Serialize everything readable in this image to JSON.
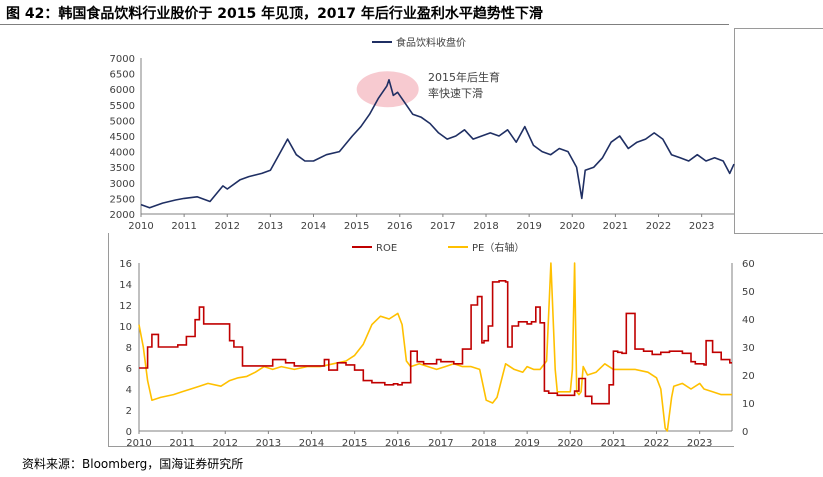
{
  "title": "图 42：韩国食品饮料行业股价于 2015 年见顶，2017 年后行业盈利水平趋势性下滑",
  "source": "资料来源：Bloomberg，国海证券研究所",
  "colors": {
    "index": "#1f2f63",
    "roe": "#c00000",
    "pe": "#ffc000",
    "highlight": "#f4b8c0"
  },
  "chart_data": [
    {
      "type": "line",
      "series": [
        {
          "name": "食品饮料收盘价",
          "x": [
            2010.0,
            2010.2,
            2010.5,
            2010.8,
            2011.0,
            2011.3,
            2011.6,
            2011.9,
            2012.0,
            2012.3,
            2012.5,
            2012.8,
            2013.0,
            2013.2,
            2013.4,
            2013.6,
            2013.8,
            2014.0,
            2014.3,
            2014.6,
            2014.9,
            2015.1,
            2015.3,
            2015.5,
            2015.6,
            2015.7,
            2015.75,
            2015.85,
            2015.95,
            2016.1,
            2016.3,
            2016.5,
            2016.7,
            2016.9,
            2017.1,
            2017.3,
            2017.5,
            2017.7,
            2017.9,
            2018.1,
            2018.3,
            2018.5,
            2018.7,
            2018.9,
            2019.1,
            2019.3,
            2019.5,
            2019.7,
            2019.9,
            2020.1,
            2020.22,
            2020.3,
            2020.5,
            2020.7,
            2020.9,
            2021.1,
            2021.3,
            2021.5,
            2021.7,
            2021.9,
            2022.1,
            2022.3,
            2022.5,
            2022.7,
            2022.9,
            2023.1,
            2023.3,
            2023.5,
            2023.65,
            2023.75
          ],
          "values": [
            2300,
            2200,
            2350,
            2450,
            2500,
            2550,
            2400,
            2900,
            2800,
            3100,
            3200,
            3300,
            3400,
            3900,
            4400,
            3900,
            3700,
            3700,
            3900,
            4000,
            4500,
            4800,
            5200,
            5700,
            5900,
            6100,
            6300,
            5800,
            5900,
            5600,
            5200,
            5100,
            4900,
            4600,
            4400,
            4500,
            4700,
            4400,
            4500,
            4600,
            4500,
            4700,
            4300,
            4800,
            4200,
            4000,
            3900,
            4100,
            4000,
            3500,
            2500,
            3400,
            3500,
            3800,
            4300,
            4500,
            4100,
            4300,
            4400,
            4600,
            4400,
            3900,
            3800,
            3700,
            3900,
            3700,
            3800,
            3700,
            3300,
            3600
          ]
        }
      ],
      "xlim": [
        2010,
        2023.75
      ],
      "ylim": [
        2000,
        7000
      ],
      "xticks": [
        "2010",
        "2011",
        "2012",
        "2013",
        "2014",
        "2015",
        "2016",
        "2017",
        "2018",
        "2019",
        "2020",
        "2021",
        "2022",
        "2023"
      ],
      "yticks": [
        "2000",
        "2500",
        "3000",
        "3500",
        "4000",
        "4500",
        "5000",
        "5500",
        "6000",
        "6500",
        "7000"
      ],
      "annotation": [
        "2015年后生育",
        "率快速下滑"
      ],
      "legend": "top-center"
    },
    {
      "type": "line",
      "series": [
        {
          "name": "ROE",
          "axis": "left",
          "x": [
            2010.0,
            2010.2,
            2010.3,
            2010.45,
            2010.7,
            2010.9,
            2011.1,
            2011.3,
            2011.4,
            2011.5,
            2011.8,
            2012.1,
            2012.2,
            2012.4,
            2012.6,
            2012.9,
            2013.1,
            2013.4,
            2013.6,
            2013.8,
            2014.1,
            2014.3,
            2014.4,
            2014.6,
            2014.8,
            2015.0,
            2015.2,
            2015.4,
            2015.7,
            2015.9,
            2016.0,
            2016.1,
            2016.3,
            2016.45,
            2016.6,
            2016.9,
            2017.0,
            2017.3,
            2017.5,
            2017.7,
            2017.85,
            2017.95,
            2018.0,
            2018.1,
            2018.2,
            2018.35,
            2018.5,
            2018.55,
            2018.65,
            2018.8,
            2019.0,
            2019.1,
            2019.2,
            2019.3,
            2019.4,
            2019.5,
            2019.7,
            2019.9,
            2020.1,
            2020.2,
            2020.35,
            2020.5,
            2020.7,
            2020.9,
            2021.0,
            2021.1,
            2021.2,
            2021.3,
            2021.5,
            2021.7,
            2021.9,
            2022.1,
            2022.3,
            2022.6,
            2022.8,
            2022.9,
            2023.1,
            2023.15,
            2023.3,
            2023.5,
            2023.7
          ],
          "values": [
            6,
            8,
            9.2,
            8,
            8,
            8.2,
            9,
            10.6,
            11.8,
            10.2,
            10.2,
            8.6,
            8,
            6.2,
            6.2,
            6.2,
            6.8,
            6.5,
            6.2,
            6.2,
            6.2,
            6.8,
            5.8,
            6.5,
            6.3,
            5.8,
            4.8,
            4.6,
            4.4,
            4.5,
            4.4,
            4.6,
            7.6,
            6.6,
            6.4,
            6.8,
            6.6,
            6.4,
            7.8,
            12,
            12.8,
            8.4,
            8.6,
            10,
            14.2,
            14.3,
            14.2,
            8,
            10,
            10.4,
            10.2,
            10.4,
            11.8,
            10.3,
            3.8,
            3.6,
            3.4,
            3.4,
            3.8,
            5,
            3.3,
            2.6,
            2.6,
            4.4,
            7.6,
            7.5,
            7.4,
            11.2,
            7.8,
            7.6,
            7.3,
            7.5,
            7.6,
            7.4,
            6.6,
            6.4,
            6.3,
            8.6,
            7.5,
            6.8,
            6.5
          ]
        },
        {
          "name": "PE（右轴）",
          "axis": "right",
          "x": [
            2010.0,
            2010.1,
            2010.2,
            2010.3,
            2010.5,
            2010.8,
            2011.0,
            2011.2,
            2011.4,
            2011.6,
            2011.9,
            2012.1,
            2012.3,
            2012.5,
            2012.7,
            2012.9,
            2013.1,
            2013.3,
            2013.6,
            2013.9,
            2014.2,
            2014.5,
            2014.8,
            2015.0,
            2015.2,
            2015.4,
            2015.6,
            2015.8,
            2016.0,
            2016.1,
            2016.2,
            2016.3,
            2016.5,
            2016.7,
            2016.9,
            2017.1,
            2017.3,
            2017.5,
            2017.7,
            2017.9,
            2018.05,
            2018.2,
            2018.3,
            2018.5,
            2018.7,
            2018.9,
            2019.0,
            2019.15,
            2019.3,
            2019.45,
            2019.55,
            2019.65,
            2019.7,
            2019.8,
            2019.9,
            2020.0,
            2020.05,
            2020.1,
            2020.15,
            2020.2,
            2020.25,
            2020.3,
            2020.4,
            2020.6,
            2020.8,
            2021.0,
            2021.2,
            2021.5,
            2021.8,
            2022.0,
            2022.1,
            2022.2,
            2022.25,
            2022.35,
            2022.4,
            2022.6,
            2022.8,
            2023.0,
            2023.1,
            2023.3,
            2023.5,
            2023.75
          ],
          "values": [
            38,
            30,
            18,
            11,
            12,
            13,
            14,
            15,
            16,
            17,
            16,
            18,
            19,
            19.5,
            21,
            23,
            22,
            23,
            22,
            23,
            23,
            24,
            25,
            27,
            31,
            38,
            41,
            40,
            42,
            38,
            25,
            23,
            24,
            23,
            22,
            23,
            24,
            23,
            23,
            22,
            11,
            10,
            12,
            24,
            22,
            21,
            23,
            22,
            22,
            25,
            60,
            22,
            14,
            14,
            14,
            14,
            22,
            60,
            14,
            13,
            14,
            23,
            20,
            21,
            24,
            22,
            22,
            22,
            21,
            19,
            15,
            1,
            0,
            12,
            16,
            17,
            15,
            17,
            15,
            14,
            13,
            13
          ]
        }
      ],
      "xlim": [
        2010,
        2023.75
      ],
      "ylim_left": [
        0,
        16
      ],
      "ylim_right": [
        0,
        60
      ],
      "xticks": [
        "2010",
        "2011",
        "2012",
        "2013",
        "2014",
        "2015",
        "2016",
        "2017",
        "2018",
        "2019",
        "2020",
        "2021",
        "2022",
        "2023"
      ],
      "yticks_left": [
        "0",
        "2",
        "4",
        "6",
        "8",
        "10",
        "12",
        "14",
        "16"
      ],
      "yticks_right": [
        "0",
        "10",
        "20",
        "30",
        "40",
        "50",
        "60"
      ],
      "legend": "top-center"
    }
  ]
}
